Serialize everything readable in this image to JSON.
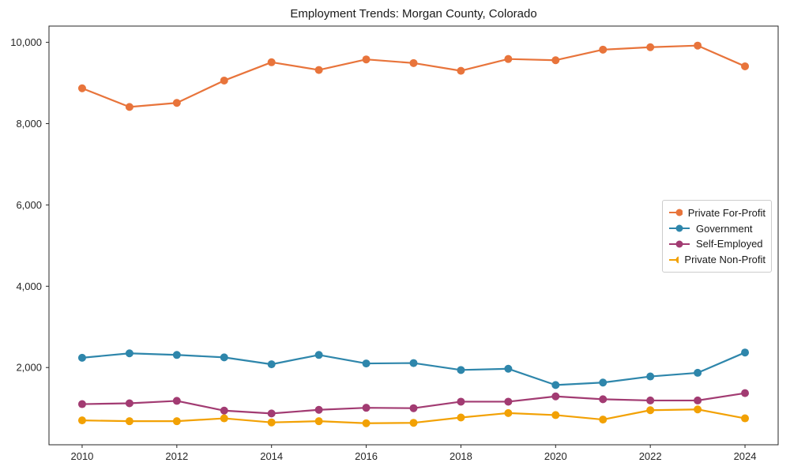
{
  "chart_data": {
    "type": "line",
    "title": "Employment Trends: Morgan County, Colorado",
    "xlabel": "",
    "ylabel": "",
    "x": [
      2010,
      2011,
      2012,
      2013,
      2014,
      2015,
      2016,
      2017,
      2018,
      2019,
      2020,
      2021,
      2022,
      2023,
      2024
    ],
    "series": [
      {
        "name": "Private For-Profit",
        "color": "#E8743B",
        "values": [
          8870,
          8410,
          8510,
          9060,
          9510,
          9320,
          9580,
          9490,
          9300,
          9590,
          9560,
          9820,
          9880,
          9920,
          9410
        ]
      },
      {
        "name": "Government",
        "color": "#2E86AB",
        "values": [
          2240,
          2350,
          2310,
          2250,
          2080,
          2310,
          2100,
          2110,
          1940,
          1970,
          1570,
          1630,
          1780,
          1870,
          2370
        ]
      },
      {
        "name": "Self-Employed",
        "color": "#A23B72",
        "values": [
          1100,
          1120,
          1180,
          940,
          870,
          960,
          1010,
          1000,
          1160,
          1160,
          1290,
          1220,
          1190,
          1190,
          1370
        ]
      },
      {
        "name": "Private Non-Profit",
        "color": "#F2A104",
        "values": [
          700,
          680,
          680,
          750,
          650,
          680,
          630,
          640,
          770,
          880,
          830,
          720,
          950,
          970,
          750
        ]
      }
    ],
    "xticks": [
      2010,
      2012,
      2014,
      2016,
      2018,
      2020,
      2022,
      2024
    ],
    "yticks": [
      2000,
      4000,
      6000,
      8000,
      10000
    ],
    "ytick_labels": [
      "2,000",
      "4,000",
      "6,000",
      "8,000",
      "10,000"
    ],
    "xlim": [
      2009.3,
      2024.7
    ],
    "ylim": [
      100,
      10400
    ],
    "grid": false,
    "legend_position": "center right",
    "marker": "circle"
  },
  "colors": {
    "axis": "#262626",
    "text": "#1a1a1a",
    "legend_border": "#cccccc",
    "background": "#ffffff"
  }
}
